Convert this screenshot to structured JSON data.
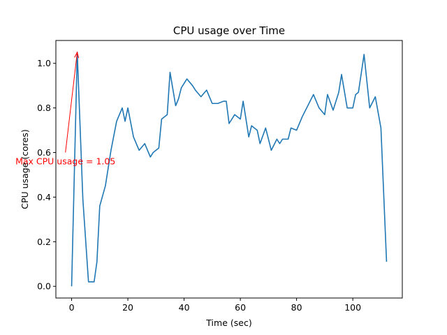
{
  "chart_data": {
    "type": "line",
    "title": "CPU usage over Time",
    "xlabel": "Time (sec)",
    "ylabel": "CPU usage (cores)",
    "xlim": [
      -5.6,
      117.6
    ],
    "ylim": [
      -0.0525,
      1.1025
    ],
    "x_ticks": [
      0,
      20,
      40,
      60,
      80,
      100
    ],
    "y_ticks": [
      0.0,
      0.2,
      0.4,
      0.6,
      0.8,
      1.0
    ],
    "x_tick_labels": [
      "0",
      "20",
      "40",
      "60",
      "80",
      "100"
    ],
    "y_tick_labels": [
      "0.0",
      "0.2",
      "0.4",
      "0.6",
      "0.8",
      "1.0"
    ],
    "grid": false,
    "series": [
      {
        "color": "#1f77b4",
        "x": [
          0,
          2,
          4,
          6,
          8,
          9,
          10,
          12,
          14,
          16,
          18,
          19,
          20,
          22,
          24,
          26,
          28,
          29,
          31,
          32,
          34,
          35,
          37,
          38,
          39,
          41,
          43,
          44,
          46,
          48,
          50,
          52,
          54,
          55,
          56,
          58,
          60,
          61,
          63,
          64,
          66,
          67,
          69,
          71,
          73,
          74,
          75,
          77,
          78,
          80,
          82,
          84,
          86,
          88,
          90,
          91,
          93,
          95,
          96,
          98,
          100,
          101,
          102,
          104,
          106,
          108,
          110,
          112
        ],
        "y": [
          0.0,
          1.05,
          0.39,
          0.02,
          0.02,
          0.11,
          0.36,
          0.45,
          0.61,
          0.74,
          0.8,
          0.74,
          0.8,
          0.67,
          0.61,
          0.64,
          0.58,
          0.6,
          0.62,
          0.75,
          0.77,
          0.96,
          0.81,
          0.84,
          0.89,
          0.93,
          0.9,
          0.88,
          0.85,
          0.88,
          0.82,
          0.82,
          0.83,
          0.83,
          0.73,
          0.77,
          0.75,
          0.83,
          0.67,
          0.72,
          0.7,
          0.64,
          0.71,
          0.61,
          0.66,
          0.64,
          0.66,
          0.66,
          0.71,
          0.7,
          0.76,
          0.81,
          0.86,
          0.8,
          0.77,
          0.86,
          0.79,
          0.87,
          0.95,
          0.8,
          0.8,
          0.86,
          0.87,
          1.04,
          0.8,
          0.85,
          0.71,
          0.11
        ]
      }
    ],
    "annotations": [
      {
        "text": "Max CPU usage = 1.05",
        "color": "#ff0000",
        "xy": [
          2,
          1.05
        ],
        "xytext": [
          -2.2,
          0.6
        ]
      }
    ]
  }
}
